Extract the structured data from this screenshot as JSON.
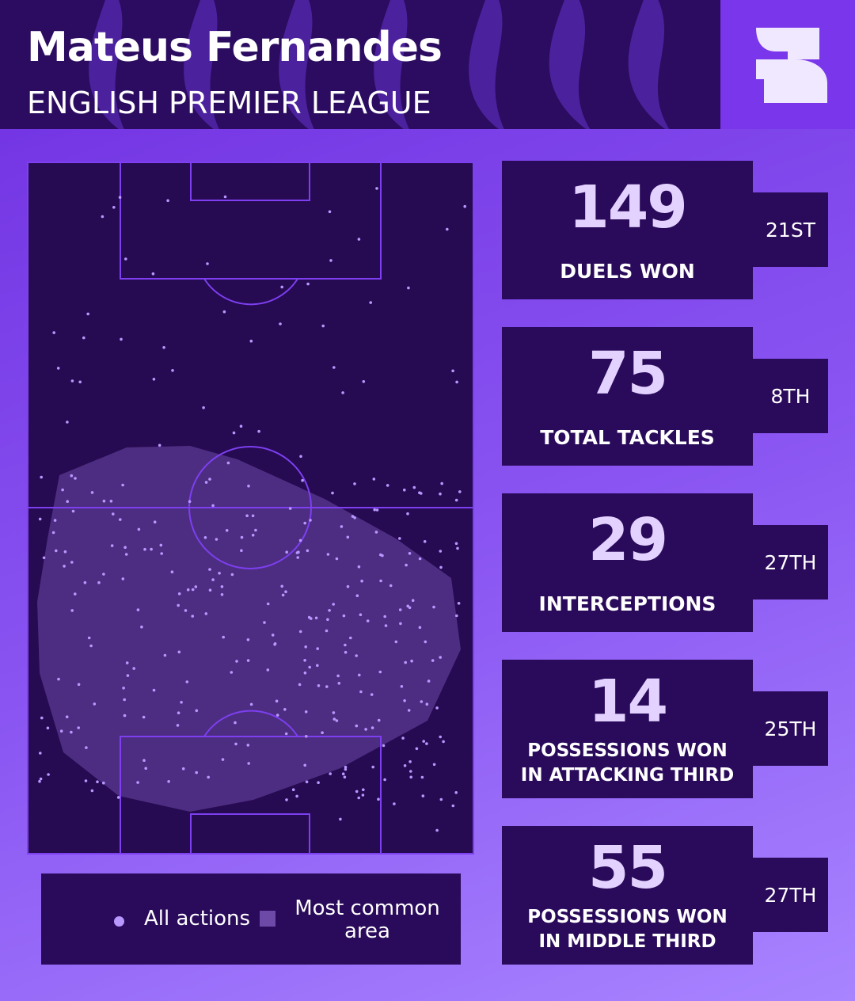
{
  "header": {
    "title": "Mateus Fernandes",
    "subtitle": "ENGLISH PREMIER LEAGUE"
  },
  "stats": [
    {
      "value": 149,
      "label": [
        "DUELS WON"
      ],
      "rank": "21ST"
    },
    {
      "value": 75,
      "label": [
        "TOTAL TACKLES"
      ],
      "rank": "8TH"
    },
    {
      "value": 29,
      "label": [
        "INTERCEPTIONS"
      ],
      "rank": "27TH"
    },
    {
      "value": 14,
      "label": [
        "POSSESSIONS WON",
        "IN ATTACKING THIRD"
      ],
      "rank": "25TH"
    },
    {
      "value": 55,
      "label": [
        "POSSESSIONS WON",
        "IN MIDDLE THIRD"
      ],
      "rank": "27TH"
    }
  ],
  "legend": {
    "items": [
      "All actions",
      "Most common area"
    ]
  }
}
